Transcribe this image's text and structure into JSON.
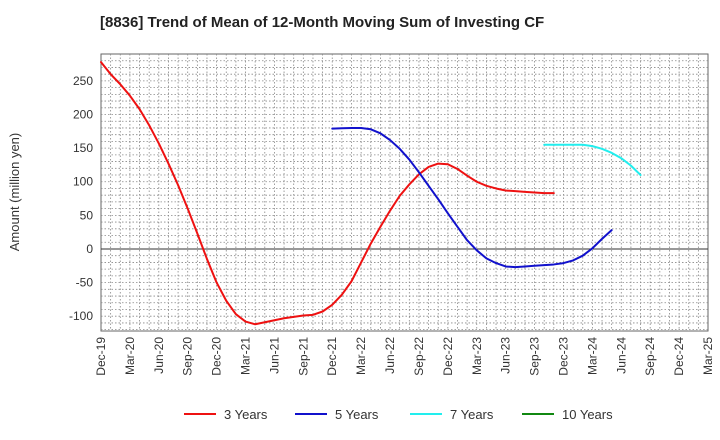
{
  "chart_data": {
    "type": "line",
    "title": "[8836]  Trend of Mean of 12-Month Moving Sum of Investing CF",
    "ylabel": "Amount (million yen)",
    "xlabel": "",
    "ylim": [
      -122,
      290
    ],
    "yticks": [
      -100,
      -50,
      0,
      50,
      100,
      150,
      200,
      250
    ],
    "x_tick_labels": [
      "Dec-19",
      "Mar-20",
      "Jun-20",
      "Sep-20",
      "Dec-20",
      "Mar-21",
      "Jun-21",
      "Sep-21",
      "Dec-21",
      "Mar-22",
      "Jun-22",
      "Sep-22",
      "Dec-22",
      "Mar-23",
      "Jun-23",
      "Sep-23",
      "Dec-23",
      "Mar-24",
      "Jun-24",
      "Sep-24",
      "Dec-24",
      "Mar-25"
    ],
    "grid": true,
    "legend_position": "bottom",
    "series": [
      {
        "name": "3 Years",
        "color": "#ee1111",
        "points": [
          [
            0,
            278
          ],
          [
            1,
            260
          ],
          [
            2,
            245
          ],
          [
            3,
            228
          ],
          [
            4,
            208
          ],
          [
            5,
            184
          ],
          [
            6,
            157
          ],
          [
            7,
            127
          ],
          [
            8,
            95
          ],
          [
            9,
            60
          ],
          [
            10,
            23
          ],
          [
            11,
            -15
          ],
          [
            12,
            -50
          ],
          [
            13,
            -77
          ],
          [
            14,
            -97
          ],
          [
            15,
            -108
          ],
          [
            16,
            -112
          ],
          [
            17,
            -109
          ],
          [
            18,
            -106
          ],
          [
            19,
            -103
          ],
          [
            20,
            -101
          ],
          [
            21,
            -99
          ],
          [
            22,
            -98
          ],
          [
            23,
            -93
          ],
          [
            24,
            -83
          ],
          [
            25,
            -68
          ],
          [
            26,
            -48
          ],
          [
            27,
            -20
          ],
          [
            28,
            8
          ],
          [
            29,
            33
          ],
          [
            30,
            57
          ],
          [
            31,
            79
          ],
          [
            32,
            96
          ],
          [
            33,
            111
          ],
          [
            34,
            122
          ],
          [
            35,
            127
          ],
          [
            36,
            126
          ],
          [
            37,
            119
          ],
          [
            38,
            109
          ],
          [
            39,
            100
          ],
          [
            40,
            94
          ],
          [
            41,
            90
          ],
          [
            42,
            87
          ],
          [
            43,
            86
          ],
          [
            44,
            85
          ],
          [
            45,
            84
          ],
          [
            46,
            83
          ],
          [
            47,
            83
          ]
        ]
      },
      {
        "name": "5 Years",
        "color": "#1111cc",
        "points": [
          [
            24,
            179
          ],
          [
            25,
            179.5
          ],
          [
            26,
            180
          ],
          [
            27,
            180
          ],
          [
            28,
            178
          ],
          [
            29,
            172
          ],
          [
            30,
            162
          ],
          [
            31,
            149
          ],
          [
            32,
            133
          ],
          [
            33,
            114
          ],
          [
            34,
            94
          ],
          [
            35,
            74
          ],
          [
            36,
            53
          ],
          [
            37,
            33
          ],
          [
            38,
            13
          ],
          [
            39,
            -2
          ],
          [
            40,
            -14
          ],
          [
            41,
            -21
          ],
          [
            42,
            -26
          ],
          [
            43,
            -27
          ],
          [
            44,
            -26
          ],
          [
            45,
            -25
          ],
          [
            46,
            -24
          ],
          [
            47,
            -23
          ],
          [
            48,
            -21
          ],
          [
            49,
            -17
          ],
          [
            50,
            -10
          ],
          [
            51,
            1
          ],
          [
            52,
            15
          ],
          [
            53,
            28
          ]
        ]
      },
      {
        "name": "7 Years",
        "color": "#22eeee",
        "points": [
          [
            46,
            155
          ],
          [
            47,
            155
          ],
          [
            48,
            155
          ],
          [
            49,
            155
          ],
          [
            50,
            155
          ],
          [
            51,
            153
          ],
          [
            52,
            149
          ],
          [
            53,
            143
          ],
          [
            54,
            135
          ],
          [
            55,
            124
          ],
          [
            56,
            110
          ]
        ]
      },
      {
        "name": "10 Years",
        "color": "#118811",
        "points": []
      }
    ]
  }
}
